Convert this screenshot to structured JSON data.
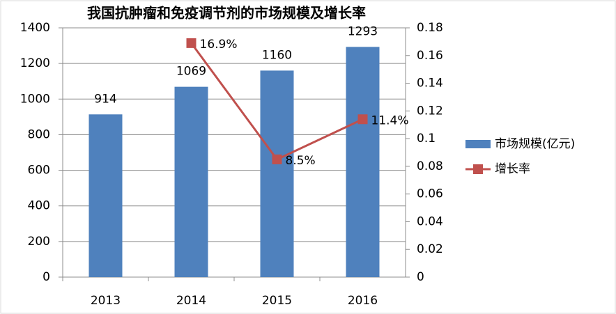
{
  "chart_data": {
    "type": "bar",
    "title": "我国抗肿瘤和免疫调节剂的市场规模及增长率",
    "categories": [
      "2013",
      "2014",
      "2015",
      "2016"
    ],
    "series": [
      {
        "name": "市场规模(亿元)",
        "type": "bar",
        "color": "#4f81bd",
        "values": [
          914,
          1069,
          1160,
          1293
        ]
      },
      {
        "name": "增长率",
        "type": "line",
        "axis": "y2",
        "color": "#c0504d",
        "values": [
          null,
          0.169,
          0.085,
          0.114
        ],
        "value_labels": [
          null,
          "16.9%",
          "8.5%",
          "11.4%"
        ]
      }
    ],
    "ylim": [
      0,
      1400
    ],
    "yticks": [
      0,
      200,
      400,
      600,
      800,
      1000,
      1200,
      1400
    ],
    "y2lim": [
      0,
      0.18
    ],
    "y2ticks": [
      0,
      0.02,
      0.04,
      0.06,
      0.08,
      0.1,
      0.12,
      0.14,
      0.16,
      0.18
    ],
    "grid": true,
    "legend": "right"
  }
}
